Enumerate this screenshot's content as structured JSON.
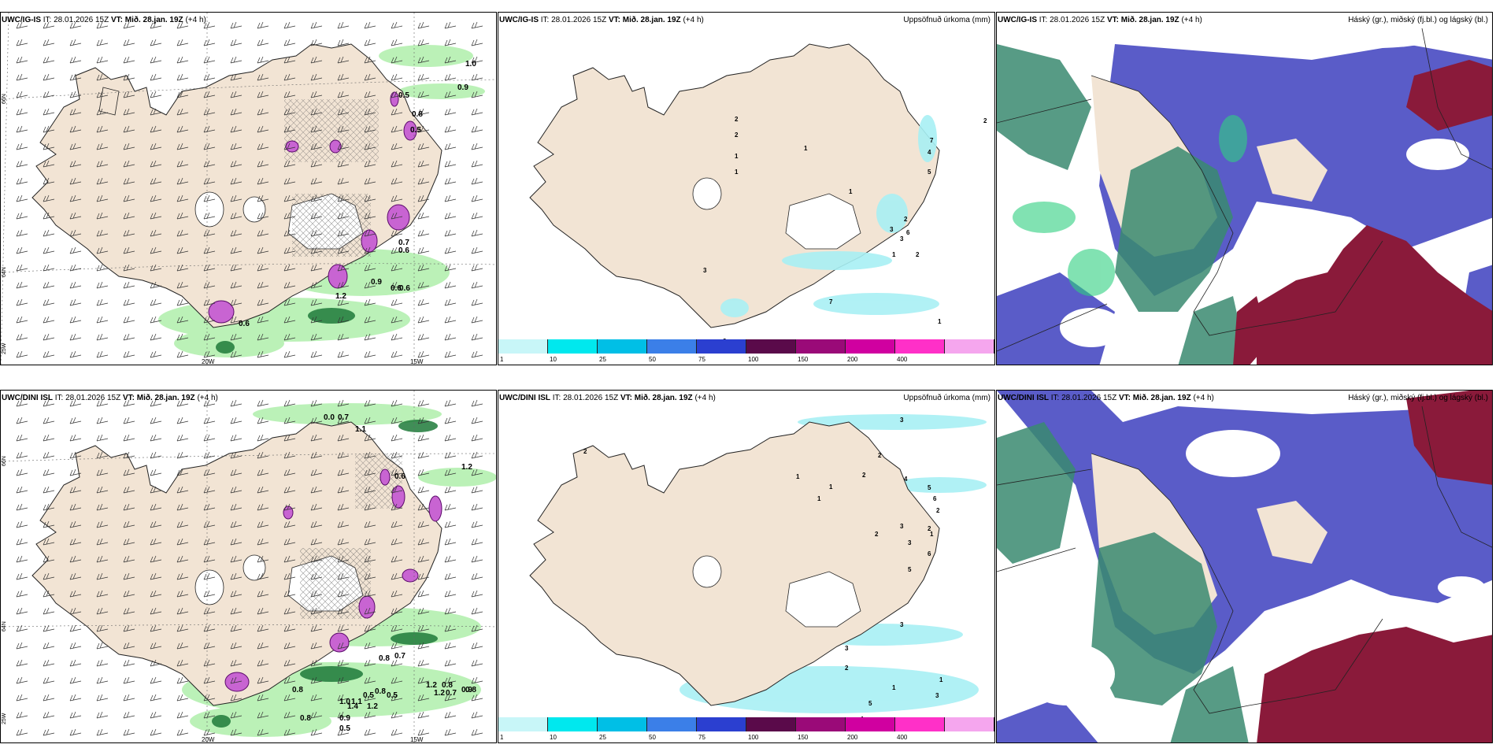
{
  "rows": [
    {
      "model": "UWC/IG-IS",
      "it": "IT: 28.01.2026 15Z",
      "vt_label": "VT:",
      "vt_value": "Mið. 28.jan. 19Z",
      "lead": "(+4 h)",
      "panel2_title": "Uppsöfnuð úrkoma (mm)",
      "panel3_title": "Háský (gr.), miðský (fj.bl.) og lágský (bl.)",
      "wind_labels": [
        "1.0",
        "0.9",
        "0.5",
        "0.8",
        "0.5",
        "0.7",
        "0.6",
        "0.9",
        "0.6",
        "0.6",
        "1.2",
        "0.6"
      ],
      "precip_labels": [
        "2",
        "2",
        "2",
        "1",
        "1",
        "1",
        "1",
        "7",
        "4",
        "5",
        "3",
        "3",
        "2",
        "6",
        "1",
        "2",
        "3",
        "7",
        "1",
        "3"
      ]
    },
    {
      "model": "UWC/DINI ISL",
      "it": "IT: 28.01.2026 15Z",
      "vt_label": "VT:",
      "vt_value": "Mið. 28.jan. 19Z",
      "lead": "(+4 h)",
      "panel2_title": "Uppsöfnuð úrkoma (mm)",
      "panel3_title": "Háský (gr.), miðský (fj.bl.) og lágský (bl.)",
      "wind_labels": [
        "0.0",
        "0.7",
        "1.1",
        "1.2",
        "0.6",
        "0.8",
        "0.7",
        "0.8",
        "0.8",
        "0.5",
        "0.5",
        "1.1",
        "1.0",
        "1.4",
        "1.2",
        "0.9",
        "0.8",
        "0.7",
        "1.2",
        "1.2",
        "0.8",
        "0.8",
        "0.9",
        "0.5"
      ],
      "precip_labels": [
        "3",
        "2",
        "2",
        "1",
        "2",
        "1",
        "1",
        "4",
        "5",
        "6",
        "2",
        "2",
        "1",
        "2",
        "3",
        "3",
        "6",
        "5",
        "3",
        "3",
        "2",
        "1",
        "1",
        "3",
        "5",
        "1",
        "1"
      ]
    }
  ],
  "axis": {
    "lon_20": "20W",
    "lon_15": "15W",
    "lat_66": "66N",
    "lat_64": "64N",
    "lon_25": "25W"
  },
  "colorbar": {
    "ticks": [
      "1",
      "10",
      "25",
      "50",
      "75",
      "100",
      "150",
      "200",
      "400"
    ],
    "colors": [
      "#c8f6f8",
      "#00e8ee",
      "#00bfe6",
      "#3b7fe8",
      "#2b3fd0",
      "#5a0a4a",
      "#9a0a78",
      "#d000a0",
      "#ff30c8",
      "#f5a6ee"
    ]
  },
  "colors": {
    "land": "#f2e4d4",
    "ice": "#ffffff",
    "green_light": "#b4f0b0",
    "green_dark": "#1e7a3a",
    "purple": "#c864d2",
    "cloud_high": "#3a8a70",
    "cloud_mid": "#5a5cc8",
    "cloud_low": "#8a1a3a",
    "cyan": "#a8f0f4"
  }
}
